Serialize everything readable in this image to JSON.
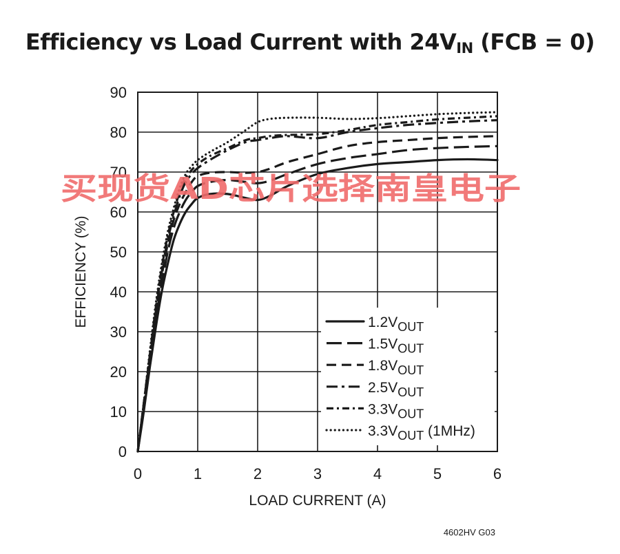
{
  "chart_data": {
    "type": "line",
    "title": {
      "main": "Efficiency vs Load Current with 24V",
      "sub": "IN",
      "tail": " (FCB = 0)"
    },
    "xlabel": "LOAD CURRENT (A)",
    "ylabel": "EFFICIENCY (%)",
    "xlim": [
      0,
      6
    ],
    "ylim": [
      0,
      90
    ],
    "xticks": [
      0,
      1,
      2,
      3,
      4,
      5,
      6
    ],
    "yticks": [
      0,
      10,
      20,
      30,
      40,
      50,
      60,
      70,
      80,
      90
    ],
    "grid": true,
    "legend_position": "bottom-right",
    "series": [
      {
        "name": "1.2V",
        "sub": "OUT",
        "extra": "",
        "style": "solid",
        "x": [
          0,
          0.1,
          0.2,
          0.3,
          0.4,
          0.5,
          0.6,
          0.7,
          0.8,
          0.9,
          1.0,
          1.2,
          1.5,
          1.8,
          2.0,
          2.2,
          2.5,
          3.0,
          3.5,
          4.0,
          4.5,
          5.0,
          5.5,
          6.0
        ],
        "y": [
          0,
          10,
          21,
          31,
          40,
          47,
          53,
          57,
          60,
          62,
          63.5,
          64.5,
          64.5,
          63.5,
          63,
          64,
          66.5,
          69.5,
          71,
          72,
          72.5,
          73,
          73.2,
          73
        ]
      },
      {
        "name": "1.5V",
        "sub": "OUT",
        "extra": "",
        "style": "long-dash",
        "x": [
          0,
          0.1,
          0.2,
          0.3,
          0.4,
          0.5,
          0.6,
          0.7,
          0.8,
          0.9,
          1.0,
          1.2,
          1.5,
          1.8,
          2.0,
          2.2,
          2.5,
          3.0,
          3.5,
          4.0,
          4.5,
          5.0,
          5.5,
          6.0
        ],
        "y": [
          0,
          11,
          22,
          33,
          42,
          50,
          56,
          60,
          63,
          65,
          66.5,
          67.5,
          68,
          67.5,
          67.2,
          67.8,
          69.5,
          72,
          73.5,
          74.5,
          75.5,
          76,
          76.3,
          76.5
        ]
      },
      {
        "name": "1.8V",
        "sub": "OUT",
        "extra": "",
        "style": "dash",
        "x": [
          0,
          0.1,
          0.2,
          0.3,
          0.4,
          0.5,
          0.6,
          0.7,
          0.8,
          0.9,
          1.0,
          1.2,
          1.5,
          1.8,
          2.0,
          2.2,
          2.5,
          3.0,
          3.5,
          4.0,
          4.5,
          5.0,
          5.5,
          6.0
        ],
        "y": [
          0,
          12,
          23,
          34,
          44,
          52,
          58,
          62,
          65,
          67.5,
          69,
          69.8,
          70,
          69.8,
          70,
          70.8,
          72.5,
          74.5,
          76.5,
          77.5,
          78,
          78.5,
          78.8,
          79
        ]
      },
      {
        "name": "2.5V",
        "sub": "OUT",
        "extra": "",
        "style": "dash-dot",
        "x": [
          0,
          0.1,
          0.2,
          0.3,
          0.4,
          0.5,
          0.6,
          0.7,
          0.8,
          0.9,
          1.0,
          1.2,
          1.5,
          1.8,
          2.0,
          2.2,
          2.5,
          3.0,
          3.5,
          4.0,
          4.5,
          5.0,
          5.5,
          6.0
        ],
        "y": [
          0,
          12,
          24,
          35,
          45,
          53,
          59,
          64,
          67.5,
          69.5,
          71,
          73,
          75.5,
          77.5,
          78,
          78.5,
          79,
          78.5,
          80,
          81,
          81.8,
          82.3,
          82.7,
          83
        ]
      },
      {
        "name": "3.3V",
        "sub": "OUT",
        "extra": "",
        "style": "long-dash-dot",
        "x": [
          0,
          0.1,
          0.2,
          0.3,
          0.4,
          0.5,
          0.6,
          0.7,
          0.8,
          0.9,
          1.0,
          1.2,
          1.5,
          1.8,
          2.0,
          2.2,
          2.5,
          3.0,
          3.5,
          4.0,
          4.5,
          5.0,
          5.5,
          6.0
        ],
        "y": [
          0,
          12,
          24,
          36,
          46,
          54,
          60,
          65,
          68.5,
          70.5,
          72,
          74,
          76,
          78,
          78.5,
          79,
          79.3,
          79.5,
          80.5,
          81.8,
          82.5,
          83.2,
          83.6,
          84
        ]
      },
      {
        "name": "3.3V",
        "sub": "OUT",
        "extra": " (1MHz)",
        "style": "dotted",
        "x": [
          0,
          0.1,
          0.2,
          0.3,
          0.4,
          0.5,
          0.6,
          0.7,
          0.8,
          0.9,
          1.0,
          1.2,
          1.5,
          1.8,
          2.0,
          2.2,
          2.5,
          3.0,
          3.5,
          4.0,
          4.5,
          5.0,
          5.5,
          6.0
        ],
        "y": [
          0,
          12,
          25,
          37,
          47,
          55,
          61,
          66,
          69.5,
          71.5,
          73,
          75,
          77.5,
          80.5,
          82.5,
          83.3,
          83.6,
          83.6,
          83.3,
          83.5,
          84,
          84.5,
          84.8,
          85
        ]
      }
    ]
  },
  "watermark": "买现货AD芯片选择南皇电子",
  "figure_id": "4602HV G03"
}
